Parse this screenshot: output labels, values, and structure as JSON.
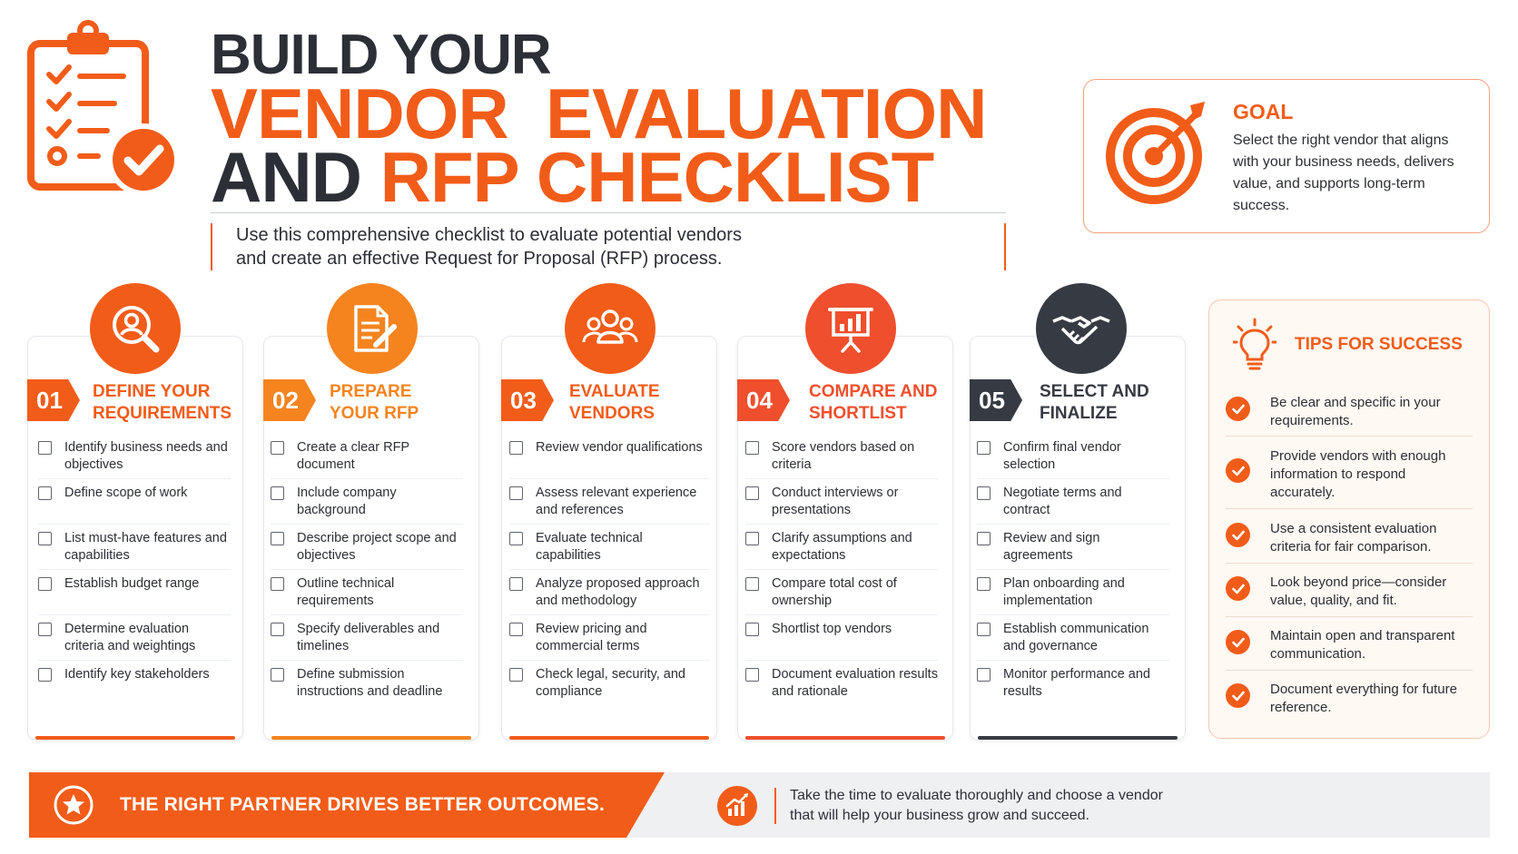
{
  "header": {
    "title_line1": "BUILD YOUR",
    "title_line2": "VENDOR  EVALUATION",
    "title_line3_a": "AND ",
    "title_line3_b": "RFP CHECKLIST",
    "subtitle_line1": "Use this comprehensive checklist to evaluate potential vendors",
    "subtitle_line2": "and create an effective Request for Proposal (RFP) process.",
    "icon": "clipboard-checklist-icon"
  },
  "goal": {
    "title": "GOAL",
    "text": "Select the right vendor that aligns with your business needs, delivers value, and supports long-term success.",
    "icon": "target-icon"
  },
  "steps": [
    {
      "number": "01",
      "title_line1": "DEFINE YOUR",
      "title_line2": "REQUIREMENTS",
      "icon": "user-search-icon",
      "color": "#f25c19",
      "items": [
        "Identify business needs and objectives",
        "Define scope of work",
        "List must-have features and capabilities",
        "Establish budget range",
        "Determine evaluation criteria and weightings",
        "Identify key stakeholders"
      ]
    },
    {
      "number": "02",
      "title_line1": "PREPARE",
      "title_line2": "YOUR RFP",
      "icon": "document-pen-icon",
      "color": "#f5841f",
      "items": [
        "Create a clear RFP document",
        "Include company background",
        "Describe project scope and objectives",
        "Outline technical requirements",
        "Specify deliverables and timelines",
        "Define submission instructions and deadline"
      ]
    },
    {
      "number": "03",
      "title_line1": "EVALUATE",
      "title_line2": "VENDORS",
      "icon": "people-group-icon",
      "color": "#f25c19",
      "items": [
        "Review vendor qualifications",
        "Assess relevant experience and references",
        "Evaluate technical capabilities",
        "Analyze proposed approach and methodology",
        "Review pricing and commercial terms",
        "Check legal, security, and compliance"
      ]
    },
    {
      "number": "04",
      "title_line1": "COMPARE AND",
      "title_line2": "SHORTLIST",
      "icon": "presentation-chart-icon",
      "color": "#ef4f2d",
      "items": [
        "Score vendors based on criteria",
        "Conduct interviews or presentations",
        "Clarify assumptions and expectations",
        "Compare total cost of ownership",
        "Shortlist top vendors",
        "Document evaluation results and rationale"
      ]
    },
    {
      "number": "05",
      "title_line1": "SELECT AND",
      "title_line2": "FINALIZE",
      "icon": "handshake-icon",
      "color": "#363a42",
      "items": [
        "Confirm final vendor selection",
        "Negotiate terms and contract",
        "Review and sign agreements",
        "Plan onboarding and implementation",
        "Establish communication and governance",
        "Monitor performance and results"
      ]
    }
  ],
  "tips": {
    "title": "TIPS FOR SUCCESS",
    "icon": "lightbulb-icon",
    "items": [
      "Be clear and specific in your requirements.",
      "Provide vendors with enough information to respond accurately.",
      "Use a consistent evaluation criteria for fair comparison.",
      "Look beyond price—consider value, quality, and fit.",
      "Maintain open and transparent communication.",
      "Document everything for future reference."
    ]
  },
  "footer": {
    "title": "THE RIGHT PARTNER DRIVES BETTER OUTCOMES.",
    "text_line1": "Take the time to evaluate thoroughly and choose a vendor",
    "text_line2": "that will help your business grow and succeed.",
    "left_icon": "star-icon",
    "right_icon": "growth-chart-icon"
  },
  "colors": {
    "accent": "#f25c19",
    "accent_light": "#f5841f",
    "dark": "#2c2f36"
  }
}
